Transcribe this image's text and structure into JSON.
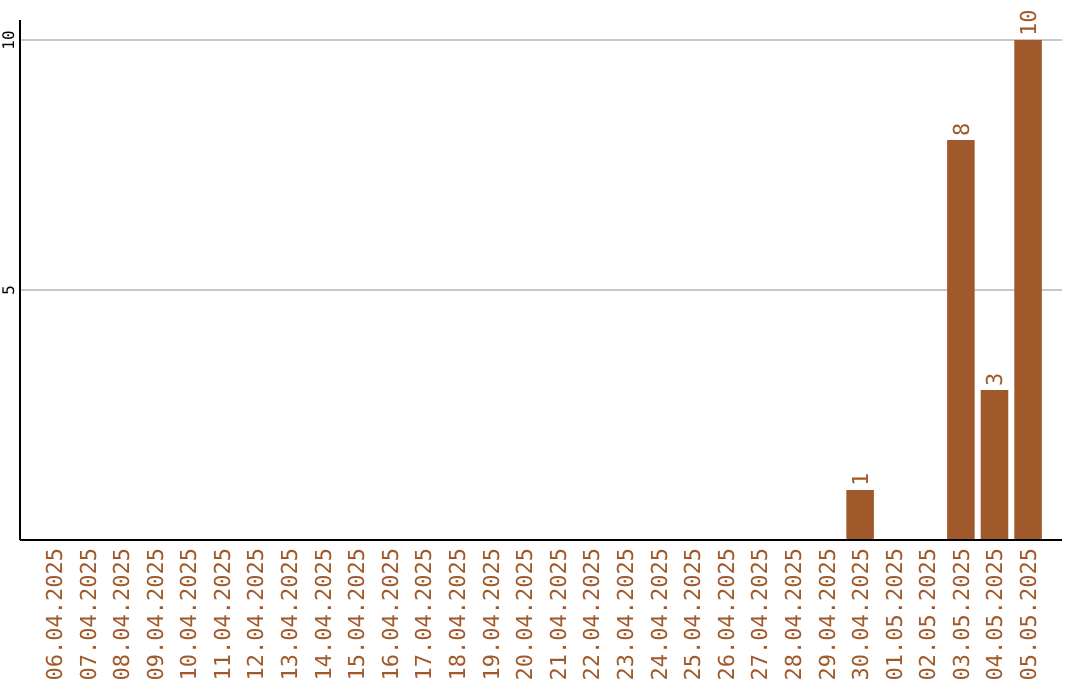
{
  "chart_data": {
    "type": "bar",
    "categories": [
      "06.04.2025",
      "07.04.2025",
      "08.04.2025",
      "09.04.2025",
      "10.04.2025",
      "11.04.2025",
      "12.04.2025",
      "13.04.2025",
      "14.04.2025",
      "15.04.2025",
      "16.04.2025",
      "17.04.2025",
      "18.04.2025",
      "19.04.2025",
      "20.04.2025",
      "21.04.2025",
      "22.04.2025",
      "23.04.2025",
      "24.04.2025",
      "25.04.2025",
      "26.04.2025",
      "27.04.2025",
      "28.04.2025",
      "29.04.2025",
      "30.04.2025",
      "01.05.2025",
      "02.05.2025",
      "03.05.2025",
      "04.05.2025",
      "05.05.2025"
    ],
    "values": [
      0,
      0,
      0,
      0,
      0,
      0,
      0,
      0,
      0,
      0,
      0,
      0,
      0,
      0,
      0,
      0,
      0,
      0,
      0,
      0,
      0,
      0,
      0,
      0,
      1,
      0,
      0,
      8,
      3,
      10
    ],
    "value_labels": [
      null,
      null,
      null,
      null,
      null,
      null,
      null,
      null,
      null,
      null,
      null,
      null,
      null,
      null,
      null,
      null,
      null,
      null,
      null,
      null,
      null,
      null,
      null,
      null,
      "1",
      null,
      null,
      "8",
      "3",
      "10"
    ],
    "color": "#a0592a",
    "ylim": [
      0,
      10
    ],
    "yticks": [
      5,
      10
    ],
    "grid": "y"
  }
}
